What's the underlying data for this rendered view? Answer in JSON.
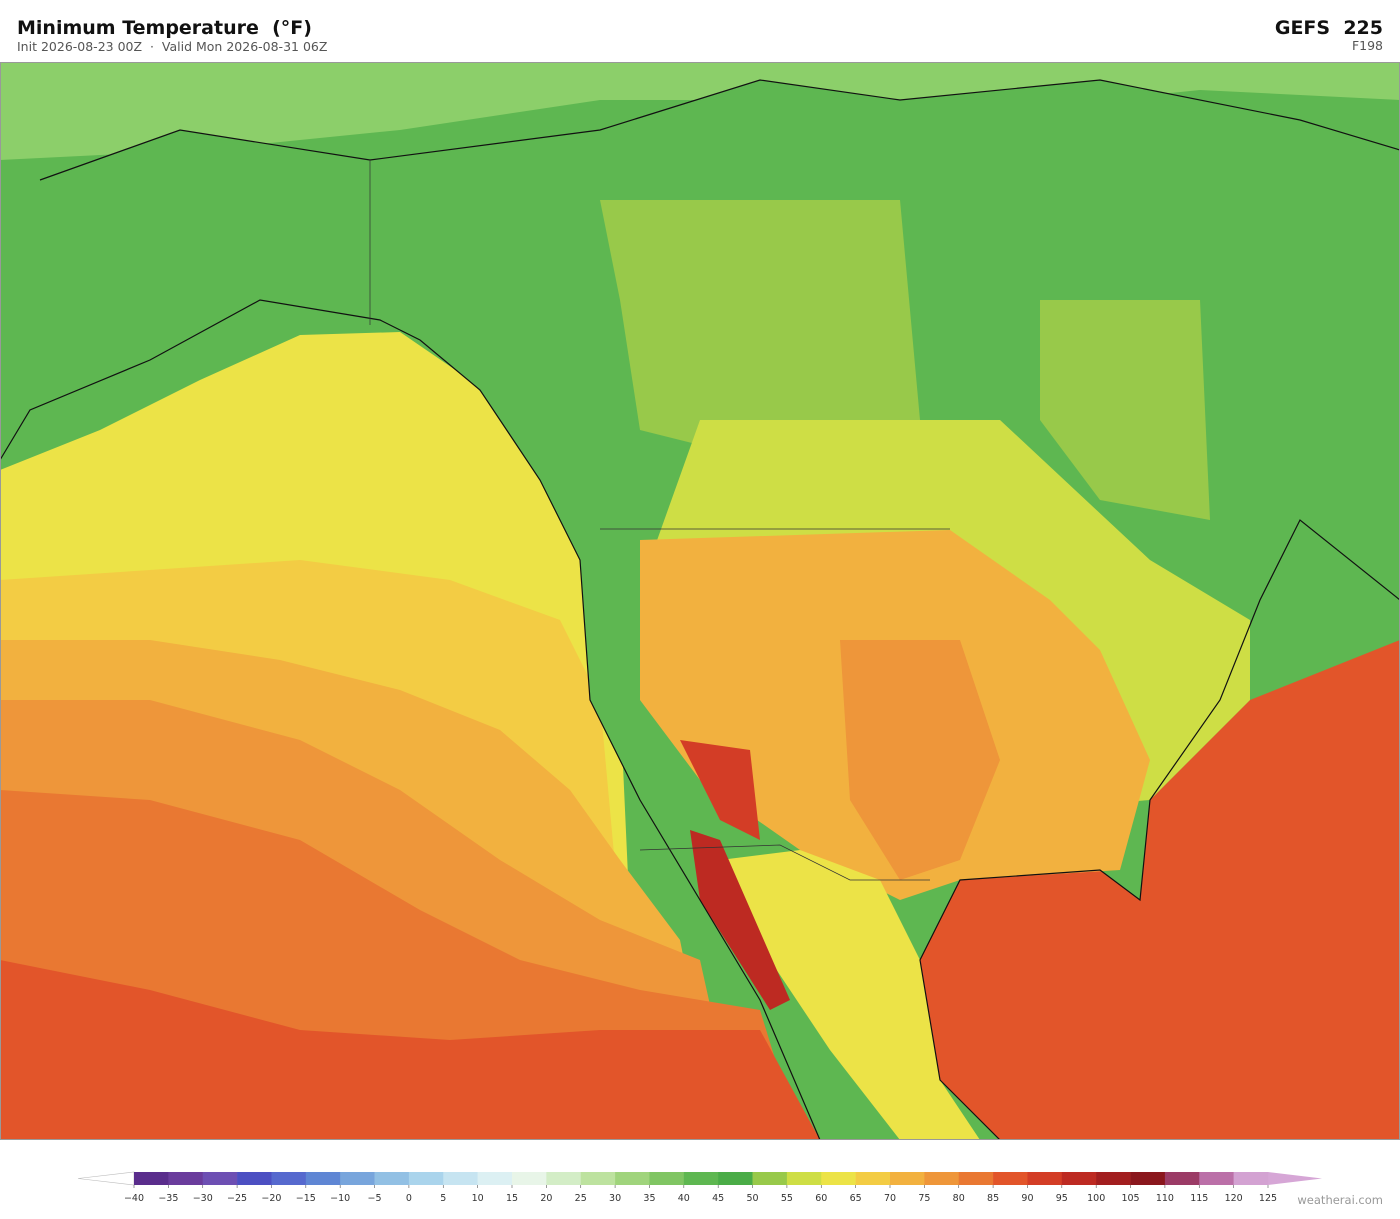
{
  "header": {
    "title": "Minimum Temperature  (°F)",
    "subtitle": "Init 2026-08-23 00Z  ·  Valid Mon 2026-08-31 06Z",
    "model": "GEFS  225",
    "forecast_hour": "F198"
  },
  "colorbar": {
    "ticks": [
      {
        "value": -40,
        "label": "−40"
      },
      {
        "value": -35,
        "label": "−35"
      },
      {
        "value": -30,
        "label": "−30"
      },
      {
        "value": -25,
        "label": "−25"
      },
      {
        "value": -20,
        "label": "−20"
      },
      {
        "value": -15,
        "label": "−15"
      },
      {
        "value": -10,
        "label": "−10"
      },
      {
        "value": -5,
        "label": "−5"
      },
      0,
      5,
      10,
      15,
      20,
      25,
      30,
      35,
      40,
      45,
      50,
      55,
      60,
      65,
      70,
      75,
      80,
      85,
      90,
      95,
      100,
      105,
      110,
      115,
      120,
      125
    ],
    "colors": [
      "#5a2d8c",
      "#6a3c9c",
      "#6d4fb3",
      "#4c4fc2",
      "#5669ce",
      "#5f86d4",
      "#78a5dc",
      "#92c0e4",
      "#aad4ec",
      "#c6e4f1",
      "#dcf0f3",
      "#e8f5e8",
      "#d3edc6",
      "#bde29f",
      "#a0d47c",
      "#80c563",
      "#5eb751",
      "#4aac47",
      "#98c94a",
      "#cede45",
      "#ece347",
      "#f3cc44",
      "#f2b13f",
      "#ee963a",
      "#e97832",
      "#e2552a",
      "#d33d26",
      "#bd2a22",
      "#a21e1f",
      "#8a171d",
      "#9b3b66",
      "#bb70a8",
      "#d3a2d2"
    ],
    "under_color": "#ffffff",
    "over_color": "#d6a6d6"
  },
  "watermark": "weatherai.com"
}
